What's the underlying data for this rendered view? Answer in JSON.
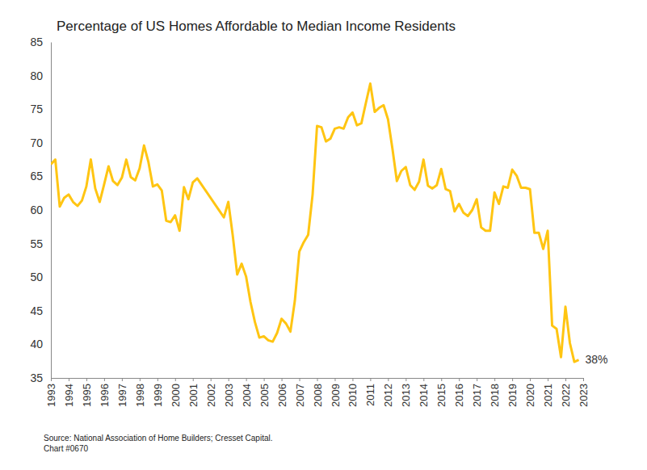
{
  "chart_data": {
    "type": "line",
    "title": "Percentage of US Homes Affordable to Median Income Residents",
    "source": "Source: National Association of Home Builders; Cresset Capital.",
    "chart_number": "Chart #0670",
    "annotations": [
      {
        "text": "38%"
      }
    ],
    "color": "#FFC512",
    "grid": false,
    "x": [
      1993,
      1993.25,
      1993.5,
      1993.75,
      1994,
      1994.25,
      1994.5,
      1994.75,
      1995,
      1995.25,
      1995.5,
      1995.75,
      1996,
      1996.25,
      1996.5,
      1996.75,
      1997,
      1997.25,
      1997.5,
      1997.75,
      1998,
      1998.25,
      1998.5,
      1998.75,
      1999,
      1999.25,
      1999.5,
      1999.75,
      2000,
      2000.25,
      2000.5,
      2000.75,
      2001,
      2001.25,
      2002.75,
      2003,
      2003.25,
      2003.5,
      2003.75,
      2004,
      2004.25,
      2004.5,
      2004.75,
      2005,
      2005.25,
      2005.5,
      2005.75,
      2006,
      2006.25,
      2006.5,
      2006.75,
      2007,
      2007.25,
      2007.5,
      2007.75,
      2008,
      2008.25,
      2008.5,
      2008.75,
      2009,
      2009.25,
      2009.5,
      2009.75,
      2010,
      2010.25,
      2010.5,
      2010.75,
      2011,
      2011.25,
      2011.5,
      2011.75,
      2012,
      2012.25,
      2012.5,
      2012.75,
      2013,
      2013.25,
      2013.5,
      2013.75,
      2014,
      2014.25,
      2014.5,
      2014.75,
      2015,
      2015.25,
      2015.5,
      2015.75,
      2016,
      2016.25,
      2016.5,
      2016.75,
      2017,
      2017.25,
      2017.5,
      2017.75,
      2018,
      2018.25,
      2018.5,
      2018.75,
      2019,
      2019.25,
      2019.5,
      2019.75,
      2020,
      2020.25,
      2020.5,
      2020.75,
      2021,
      2021.25,
      2021.5,
      2021.75,
      2022,
      2022.25,
      2022.5,
      2022.75
    ],
    "values": [
      66.8,
      67.5,
      60.5,
      61.8,
      62.3,
      61.2,
      60.6,
      61.4,
      63.5,
      67.5,
      63.2,
      61.2,
      63.8,
      66.5,
      64.3,
      63.7,
      64.8,
      67.5,
      64.9,
      64.4,
      66.2,
      69.6,
      67.1,
      63.5,
      63.8,
      62.9,
      58.4,
      58.2,
      59.2,
      56.9,
      63.4,
      61.6,
      64.1,
      64.7,
      58.9,
      61.2,
      56.2,
      50.4,
      52.0,
      50.1,
      46.3,
      43.3,
      41.0,
      41.2,
      40.6,
      40.4,
      41.7,
      43.8,
      43.1,
      41.9,
      46.5,
      53.8,
      55.2,
      56.3,
      62.3,
      72.5,
      72.3,
      70.2,
      70.6,
      72.1,
      72.3,
      72.1,
      73.8,
      74.5,
      72.6,
      72.9,
      75.9,
      78.8,
      74.6,
      75.2,
      75.6,
      73.5,
      69.1,
      64.3,
      65.8,
      66.4,
      63.7,
      63.0,
      64.2,
      67.5,
      63.6,
      63.2,
      63.7,
      66.1,
      63.1,
      62.8,
      59.8,
      60.9,
      59.6,
      59.1,
      60.0,
      61.6,
      57.4,
      56.9,
      56.9,
      62.6,
      60.9,
      63.5,
      63.3,
      66.0,
      65.1,
      63.3,
      63.3,
      63.1,
      56.6,
      56.6,
      54.2,
      56.9,
      42.8,
      42.3,
      38.1,
      45.6,
      40.2,
      37.4,
      37.7
    ],
    "xlim": [
      1993,
      2023
    ],
    "xticks": [
      1993,
      1994,
      1995,
      1996,
      1997,
      1998,
      1999,
      2000,
      2001,
      2002,
      2003,
      2004,
      2005,
      2006,
      2007,
      2008,
      2009,
      2010,
      2011,
      2012,
      2013,
      2014,
      2015,
      2016,
      2017,
      2018,
      2019,
      2020,
      2021,
      2022,
      2023
    ],
    "ylim": [
      35,
      85
    ],
    "yticks": [
      35,
      40,
      45,
      50,
      55,
      60,
      65,
      70,
      75,
      80,
      85
    ]
  }
}
